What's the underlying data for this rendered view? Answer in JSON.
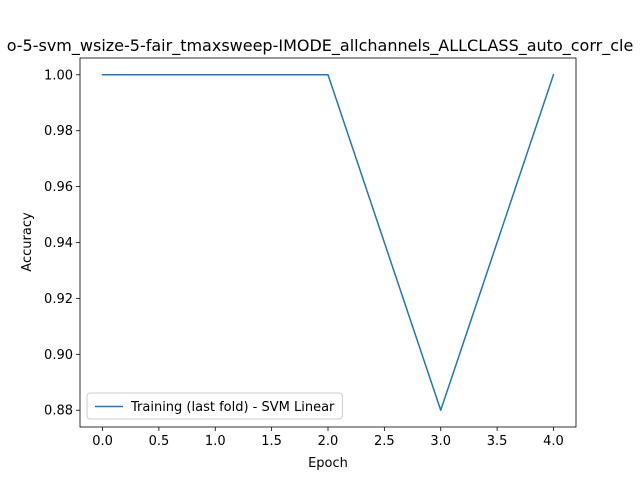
{
  "chart_data": {
    "type": "line",
    "title": "o-5-svm_wsize-5-fair_tmaxsweep-IMODE_allchannels_ALLCLASS_auto_corr_cle",
    "xlabel": "Epoch",
    "ylabel": "Accuracy",
    "xlim": [
      -0.2,
      4.2
    ],
    "ylim": [
      0.874,
      1.006
    ],
    "xticks": [
      0.0,
      0.5,
      1.0,
      1.5,
      2.0,
      2.5,
      3.0,
      3.5,
      4.0
    ],
    "xtick_labels": [
      "0.0",
      "0.5",
      "1.0",
      "1.5",
      "2.0",
      "2.5",
      "3.0",
      "3.5",
      "4.0"
    ],
    "yticks": [
      0.88,
      0.9,
      0.92,
      0.94,
      0.96,
      0.98,
      1.0
    ],
    "ytick_labels": [
      "0.88",
      "0.90",
      "0.92",
      "0.94",
      "0.96",
      "0.98",
      "1.00"
    ],
    "grid": false,
    "legend_position": "lower-left",
    "series": [
      {
        "name": "Training (last fold) - SVM Linear",
        "color": "#1f77b4",
        "x": [
          0,
          1,
          2,
          3,
          4
        ],
        "y": [
          1.0,
          1.0,
          1.0,
          0.88,
          1.0
        ]
      }
    ]
  }
}
